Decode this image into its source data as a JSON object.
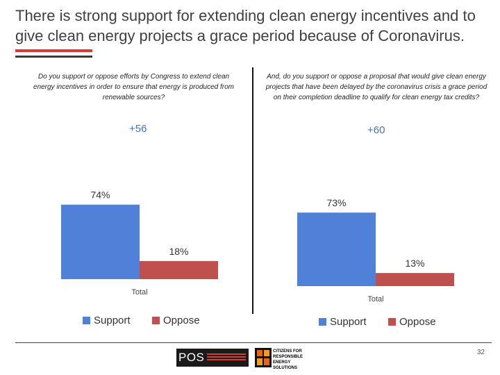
{
  "slide": {
    "title": "There is strong support for extending clean energy incentives and to give clean energy projects a grace period because of Coronavirus.",
    "page_number": "32",
    "logos": {
      "pos": "POS",
      "cres": "CITIZENS FOR RESPONSIBLE ENERGY SOLUTIONS"
    }
  },
  "colors": {
    "support": "#4f81d9",
    "oppose": "#c0504d",
    "net": "#4472c4",
    "rule_red": "#d83a36"
  },
  "chart_data": [
    {
      "type": "bar",
      "question": "Do you support or oppose efforts by Congress to extend clean energy incentives in order to ensure that energy is produced from renewable sources?",
      "categories": [
        "Total"
      ],
      "series": [
        {
          "name": "Support",
          "values": [
            74
          ]
        },
        {
          "name": "Oppose",
          "values": [
            18
          ]
        }
      ],
      "data_labels": [
        "74%",
        "18%"
      ],
      "net_label": "+56",
      "legend": [
        "Support",
        "Oppose"
      ],
      "legend_position": "bottom",
      "ylim": [
        0,
        100
      ]
    },
    {
      "type": "bar",
      "question": "And, do you support or oppose a proposal that would give clean energy projects that have been delayed by the coronavirus crisis a grace period on their completion deadline to qualify for clean energy tax credits?",
      "categories": [
        "Total"
      ],
      "series": [
        {
          "name": "Support",
          "values": [
            73
          ]
        },
        {
          "name": "Oppose",
          "values": [
            13
          ]
        }
      ],
      "data_labels": [
        "73%",
        "13%"
      ],
      "net_label": "+60",
      "legend": [
        "Support",
        "Oppose"
      ],
      "legend_position": "bottom",
      "ylim": [
        0,
        100
      ]
    }
  ]
}
